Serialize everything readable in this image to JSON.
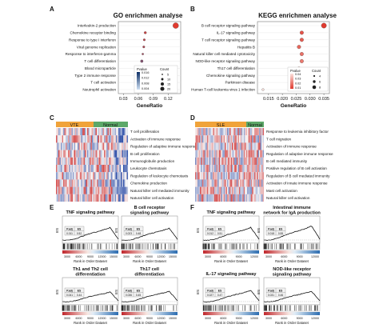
{
  "panels": {
    "A": {
      "letter": "A",
      "title": "GO enrichmen analyse",
      "xlabel": "GeneRatio",
      "terms": [
        "Interleukin-2 production",
        "Chemokine receptor binding",
        "Response to type I interferon",
        "Viral genome replication",
        "Response to interferon-gamma",
        "T cell differentiation",
        "Blood microparticle",
        "Type 2 immune response",
        "T cell activation",
        "Neutrophil activation"
      ],
      "ticks": [
        "0.03",
        "0.06",
        "0.09",
        "0.12"
      ],
      "legend_pvalue_title": "Pvalue",
      "legend_pvalue_ticks": [
        "0.016",
        "0.012",
        "0.008",
        "0.004"
      ],
      "legend_count_title": "Count",
      "legend_count_values": [
        "5",
        "10",
        "15",
        "20"
      ]
    },
    "B": {
      "letter": "B",
      "title": "KEGG enrichmen analyse",
      "xlabel": "GeneRatio",
      "terms": [
        "B cell receptor signaling pathway",
        "IL-17 signaling pathway",
        "T cell receptor signaling pathway",
        "Hepatitis B",
        "Natural killer cell mediated cytotoxicity",
        "NOD-like receptor signaling pathway",
        "Th17 cell differentiation",
        "Chemokine signaling pathway",
        "Parkinson disease",
        "Human T-cell leukemia virus 1 infection"
      ],
      "ticks": [
        "0.015",
        "0.020",
        "0.025",
        "0.030",
        "0.035"
      ],
      "legend_pvalue_title": "Pvalue",
      "legend_pvalue_ticks": [
        "0.04",
        "0.03",
        "0.02",
        "0.01"
      ],
      "legend_count_title": "Count",
      "legend_count_values": [
        "4",
        "6",
        "8"
      ]
    },
    "C": {
      "letter": "C",
      "groups": [
        "VTE",
        "Normal"
      ],
      "terms": [
        "T cell proliferation",
        "Activation of immune response",
        "Regulation of adaptive immune response",
        "B cell proliferation",
        "Immunoglobulin production",
        "Leukocyte chemotaxis",
        "Regulation of leukocyte chemotaxis",
        "Chemokine production",
        "Natural killer cell mediated immunity",
        "Natural killer cell activation"
      ]
    },
    "D": {
      "letter": "D",
      "groups": [
        "SLE",
        "Normal"
      ],
      "terms": [
        "Response to leukemia inhibitory factor",
        "T cell migration",
        "Activation of immune response",
        "Regulation of adaptive immune response",
        "B cell mediated immunity",
        "Positive regulation of B cell activation",
        "Regulation of B cell mediated immunity",
        "Activation of innate immune response",
        "Mast cell activation",
        "Natural killer cell activation"
      ]
    },
    "E": {
      "letter": "E",
      "ylabel": "ES",
      "xlabel": "Rank in Order Dataset",
      "x_ticks": [
        "3000",
        "6000",
        "9000",
        "12000",
        "15000"
      ],
      "plots": [
        {
          "title": "TNF signaling pathway",
          "stat_labels": [
            "P.adj",
            "ES"
          ],
          "stat_values": [
            "0.011",
            "0.52"
          ]
        },
        {
          "title": "B cell receptor signaling pathway",
          "stat_labels": [
            "P.adj",
            "ES"
          ],
          "stat_values": [
            "0.023",
            "0.48"
          ]
        },
        {
          "title": "Th1 and Th2 cell differentiation",
          "stat_labels": [
            "P.adj",
            "ES"
          ],
          "stat_values": [
            "0.041",
            "0.44"
          ]
        },
        {
          "title": "Th17 cell differentiation",
          "stat_labels": [
            "P.adj",
            "ES"
          ],
          "stat_values": [
            "0.036",
            "0.45"
          ]
        }
      ]
    },
    "F": {
      "letter": "F",
      "ylabel": "ES",
      "xlabel": "Rank in Order Dataset",
      "x_ticks": [
        "3000",
        "6000",
        "9000",
        "12000"
      ],
      "plots": [
        {
          "title": "TNF signaling pathway",
          "stat_labels": [
            "P.adj",
            "ES"
          ],
          "stat_values": [
            "0.012",
            "0.51"
          ]
        },
        {
          "title": "Intestinal immune network for IgA production",
          "stat_labels": [
            "P.adj",
            "ES"
          ],
          "stat_values": [
            "0.018",
            "0.55"
          ]
        },
        {
          "title": "IL-17 signaling pathway",
          "stat_labels": [
            "P.adj",
            "ES"
          ],
          "stat_values": [
            "0.027",
            "0.47"
          ]
        },
        {
          "title": "NOD-like receptor signaling pathway",
          "stat_labels": [
            "P.adj",
            "ES"
          ],
          "stat_values": [
            "0.031",
            "0.46"
          ]
        }
      ]
    }
  },
  "colors": {
    "low": "#2c6fb7",
    "high": "#e03b2f",
    "group_a": "#f0a33a",
    "group_b": "#5ca868",
    "curve": "#111111"
  },
  "chart_data": [
    {
      "type": "scatter",
      "title": "GO enrichmen analyse",
      "xlabel": "GeneRatio",
      "ylabel": "",
      "xlim": [
        0.02,
        0.145
      ],
      "categories": [
        "Interleukin-2 production",
        "Chemokine receptor binding",
        "Response to type I interferon",
        "Viral genome replication",
        "Response to interferon-gamma",
        "T cell differentiation",
        "Blood microparticle",
        "Type 2 immune response",
        "T cell activation",
        "Neutrophil activation"
      ],
      "x": [
        0.135,
        0.074,
        0.072,
        0.071,
        0.069,
        0.067,
        0.066,
        0.063,
        0.06,
        0.058
      ],
      "count": [
        20,
        7,
        6,
        6,
        5,
        8,
        7,
        5,
        6,
        5
      ],
      "pvalue": [
        0.002,
        0.004,
        0.005,
        0.006,
        0.007,
        0.009,
        0.01,
        0.012,
        0.014,
        0.016
      ]
    },
    {
      "type": "scatter",
      "title": "KEGG enrichmen analyse",
      "xlabel": "GeneRatio",
      "ylabel": "",
      "xlim": [
        0.011,
        0.037
      ],
      "categories": [
        "B cell receptor signaling pathway",
        "IL-17 signaling pathway",
        "T cell receptor signaling pathway",
        "Hepatitis B",
        "Natural killer cell mediated cytotoxicity",
        "NOD-like receptor signaling pathway",
        "Th17 cell differentiation",
        "Chemokine signaling pathway",
        "Parkinson disease",
        "Human T-cell leukemia virus 1 infection"
      ],
      "x": [
        0.035,
        0.027,
        0.027,
        0.026,
        0.027,
        0.027,
        0.026,
        0.026,
        0.023,
        0.013
      ],
      "count": [
        8,
        6,
        6,
        6,
        6,
        6,
        5,
        5,
        5,
        4
      ],
      "pvalue": [
        0.005,
        0.01,
        0.012,
        0.014,
        0.016,
        0.018,
        0.022,
        0.025,
        0.03,
        0.04
      ]
    }
  ]
}
